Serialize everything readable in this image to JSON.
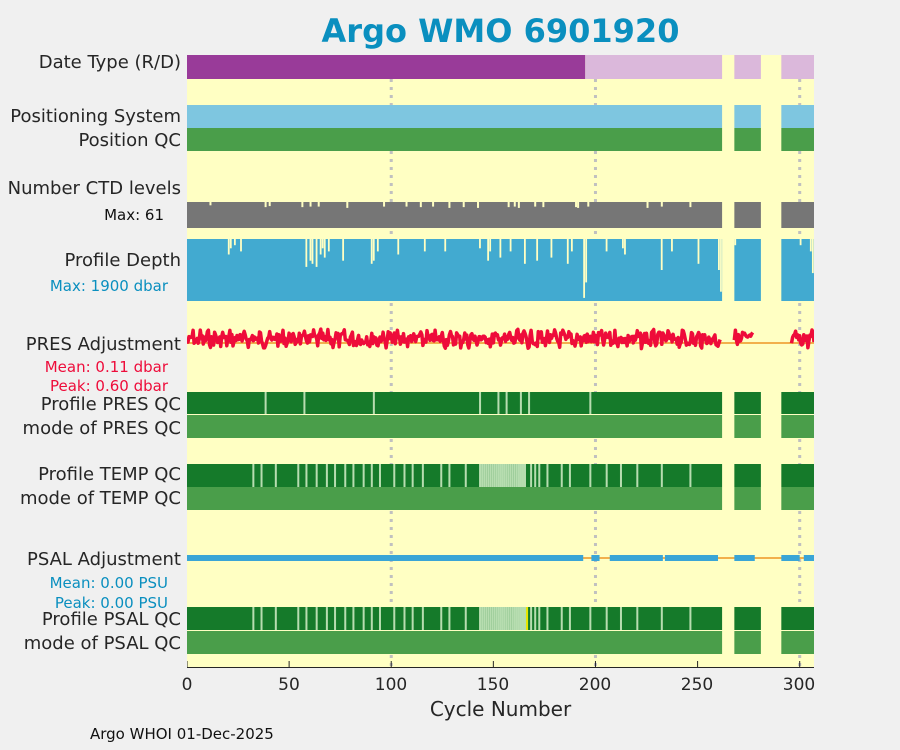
{
  "title": "Argo WMO 6901920",
  "footer": "Argo WHOI 01-Dec-2025",
  "colors": {
    "plot_bg": "#ffffc3",
    "title": "#0a8fbf",
    "purple_dark": "#993b99",
    "purple_light": "#dbb8db",
    "light_blue": "#7ec6e0",
    "green_mid": "#4a9e4a",
    "green_dark": "#157a2a",
    "grey": "#767676",
    "depth_blue": "#42aad0",
    "red": "#ee0c3a",
    "orange": "#f2b04c",
    "psal_blue": "#3aa5d6",
    "pale_green": "#b7ddb0",
    "yellow": "#e6e600",
    "grid": "#c0c0c0"
  },
  "labels": {
    "date_type": "Date Type (R/D)",
    "positioning_system": "Positioning System",
    "position_qc": "Position QC",
    "ctd_levels": "Number CTD levels",
    "ctd_max": "Max: 61",
    "profile_depth": "Profile Depth",
    "depth_max": "Max: 1900 dbar",
    "pres_adjustment": "PRES Adjustment",
    "pres_mean": "Mean: 0.11 dbar",
    "pres_peak": "Peak: 0.60 dbar",
    "profile_pres_qc": "Profile PRES QC",
    "mode_pres_qc": "mode of PRES QC",
    "profile_temp_qc": "Profile TEMP QC",
    "mode_temp_qc": "mode of TEMP QC",
    "psal_adjustment": "PSAL Adjustment",
    "psal_mean": "Mean: 0.00 PSU",
    "psal_peak": "Peak: 0.00 PSU",
    "profile_psal_qc": "Profile PSAL QC",
    "mode_psal_qc": "mode of PSAL QC"
  },
  "chart_data": {
    "type": "bar",
    "title": "Argo WMO 6901920",
    "xlabel": "Cycle Number",
    "ylabel": "",
    "xlim": [
      0,
      307
    ],
    "xticks": [
      0,
      50,
      100,
      150,
      200,
      250,
      300
    ],
    "grid_x": [
      100,
      200,
      300
    ],
    "data_segments": [
      [
        0,
        261
      ],
      [
        268,
        280
      ],
      [
        291,
        307
      ]
    ],
    "date_type_realtime_until": 195,
    "ctd_levels_max": 61,
    "profile_depth_max_dbar": 1900,
    "pres_adjustment": {
      "mean_dbar": 0.11,
      "peak_dbar": 0.6
    },
    "psal_adjustment": {
      "mean_psu": 0.0,
      "peak_psu": 0.0
    },
    "psal_adjustment_gaps": [
      [
        194,
        198
      ],
      [
        202,
        207
      ],
      [
        233,
        234
      ],
      [
        260,
        268
      ],
      [
        278,
        292
      ],
      [
        300,
        302
      ]
    ],
    "pres_qc_flagged_cycles": [
      38,
      57,
      91,
      143,
      152,
      156,
      163,
      167,
      197
    ],
    "temp_qc_flagged_cycles": [
      32,
      36,
      43,
      54,
      58,
      63,
      68,
      72,
      77,
      81,
      86,
      90,
      94,
      101,
      106,
      110,
      115,
      124,
      128,
      136,
      143,
      144,
      145,
      146,
      147,
      148,
      149,
      150,
      151,
      152,
      153,
      154,
      155,
      156,
      157,
      158,
      159,
      160,
      161,
      162,
      163,
      164,
      165,
      168,
      170,
      172,
      176,
      183,
      187,
      197,
      205,
      212,
      220,
      232,
      246
    ],
    "temp_qc_pale_cycles": [
      162,
      163,
      164,
      165
    ],
    "psal_qc_flagged_cycles": [
      32,
      36,
      43,
      54,
      58,
      63,
      68,
      72,
      77,
      81,
      86,
      90,
      94,
      101,
      106,
      110,
      115,
      124,
      128,
      136,
      143,
      144,
      145,
      146,
      147,
      148,
      149,
      150,
      151,
      152,
      153,
      154,
      155,
      156,
      157,
      158,
      159,
      160,
      161,
      162,
      163,
      164,
      165,
      166,
      168,
      170,
      172,
      176,
      183,
      187,
      197,
      205,
      212,
      220,
      232,
      246
    ],
    "psal_qc_pale_cycles": [
      160,
      161,
      162,
      163,
      164
    ],
    "psal_qc_yellow_cycles": [
      166
    ],
    "ctd_level_dips": [
      {
        "cycle": 11,
        "frac": 0.95
      },
      {
        "cycle": 38,
        "frac": 0.88
      },
      {
        "cycle": 40,
        "frac": 0.92
      },
      {
        "cycle": 56,
        "frac": 0.88
      },
      {
        "cycle": 60,
        "frac": 0.9
      },
      {
        "cycle": 64,
        "frac": 0.9
      },
      {
        "cycle": 78,
        "frac": 0.85
      },
      {
        "cycle": 96,
        "frac": 0.9
      },
      {
        "cycle": 107,
        "frac": 0.9
      },
      {
        "cycle": 114,
        "frac": 0.88
      },
      {
        "cycle": 120,
        "frac": 0.9
      },
      {
        "cycle": 128,
        "frac": 0.85
      },
      {
        "cycle": 135,
        "frac": 0.88
      },
      {
        "cycle": 142,
        "frac": 0.85
      },
      {
        "cycle": 157,
        "frac": 0.88
      },
      {
        "cycle": 160,
        "frac": 0.9
      },
      {
        "cycle": 162,
        "frac": 0.85
      },
      {
        "cycle": 170,
        "frac": 0.9
      },
      {
        "cycle": 174,
        "frac": 0.88
      },
      {
        "cycle": 190,
        "frac": 0.88
      },
      {
        "cycle": 191,
        "frac": 0.85
      },
      {
        "cycle": 196,
        "frac": 0.9
      },
      {
        "cycle": 225,
        "frac": 0.85
      },
      {
        "cycle": 232,
        "frac": 0.9
      },
      {
        "cycle": 246,
        "frac": 0.88
      }
    ],
    "depth_dips": [
      {
        "cycle": 20,
        "frac": 0.25
      },
      {
        "cycle": 21,
        "frac": 0.15
      },
      {
        "cycle": 23,
        "frac": 0.1
      },
      {
        "cycle": 26,
        "frac": 0.2
      },
      {
        "cycle": 58,
        "frac": 0.45
      },
      {
        "cycle": 60,
        "frac": 0.35
      },
      {
        "cycle": 61,
        "frac": 0.4
      },
      {
        "cycle": 63,
        "frac": 0.45
      },
      {
        "cycle": 65,
        "frac": 0.25
      },
      {
        "cycle": 66,
        "frac": 0.15
      },
      {
        "cycle": 67,
        "frac": 0.3
      },
      {
        "cycle": 69,
        "frac": 0.2
      },
      {
        "cycle": 76,
        "frac": 0.35
      },
      {
        "cycle": 90,
        "frac": 0.4
      },
      {
        "cycle": 91,
        "frac": 0.35
      },
      {
        "cycle": 93,
        "frac": 0.2
      },
      {
        "cycle": 103,
        "frac": 0.25
      },
      {
        "cycle": 116,
        "frac": 0.2
      },
      {
        "cycle": 126,
        "frac": 0.2
      },
      {
        "cycle": 143,
        "frac": 0.15
      },
      {
        "cycle": 147,
        "frac": 0.35
      },
      {
        "cycle": 148,
        "frac": 0.2
      },
      {
        "cycle": 153,
        "frac": 0.3
      },
      {
        "cycle": 158,
        "frac": 0.2
      },
      {
        "cycle": 165,
        "frac": 0.4
      },
      {
        "cycle": 171,
        "frac": 0.35
      },
      {
        "cycle": 178,
        "frac": 0.3
      },
      {
        "cycle": 186,
        "frac": 0.4
      },
      {
        "cycle": 188,
        "frac": 0.2
      },
      {
        "cycle": 194,
        "frac": 0.95
      },
      {
        "cycle": 195,
        "frac": 0.7
      },
      {
        "cycle": 205,
        "frac": 0.2
      },
      {
        "cycle": 213,
        "frac": 0.15
      },
      {
        "cycle": 214,
        "frac": 0.25
      },
      {
        "cycle": 232,
        "frac": 0.5
      },
      {
        "cycle": 237,
        "frac": 0.2
      },
      {
        "cycle": 250,
        "frac": 0.4
      },
      {
        "cycle": 260,
        "frac": 0.5
      },
      {
        "cycle": 261,
        "frac": 0.85
      },
      {
        "cycle": 268,
        "frac": 0.1
      },
      {
        "cycle": 300,
        "frac": 0.1
      },
      {
        "cycle": 305,
        "frac": 0.2
      },
      {
        "cycle": 306,
        "frac": 0.55
      },
      {
        "cycle": 307,
        "frac": 0.8
      }
    ]
  }
}
